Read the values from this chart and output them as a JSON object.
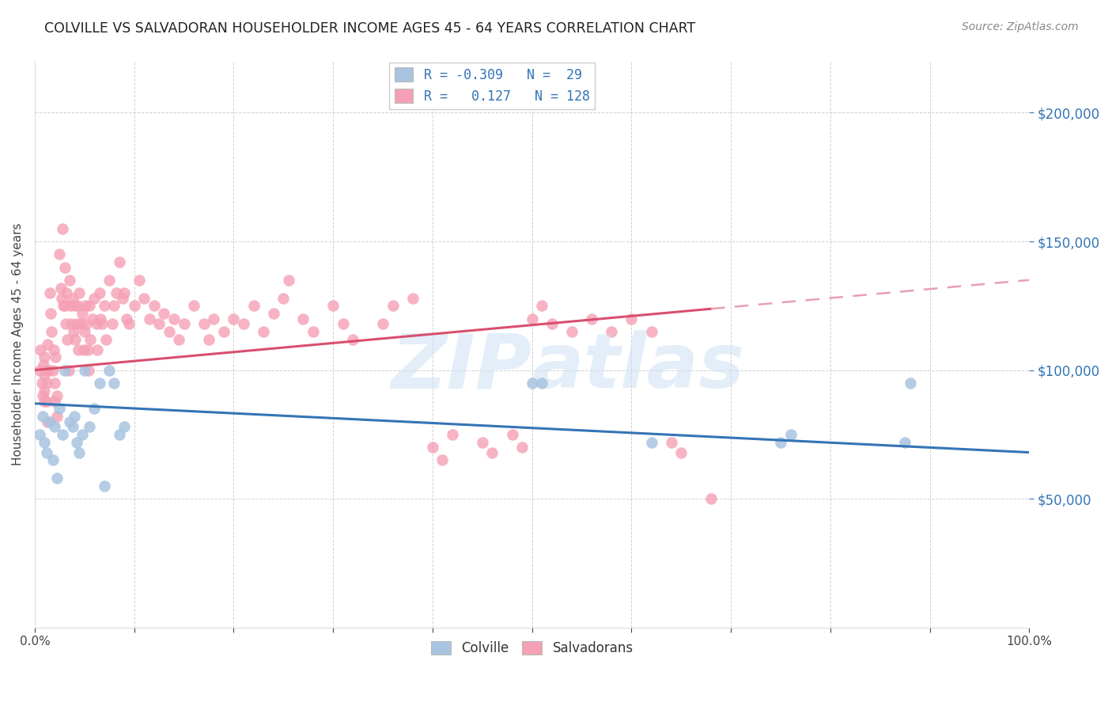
{
  "title": "COLVILLE VS SALVADORAN HOUSEHOLDER INCOME AGES 45 - 64 YEARS CORRELATION CHART",
  "source": "Source: ZipAtlas.com",
  "ylabel": "Householder Income Ages 45 - 64 years",
  "ytick_labels": [
    "$50,000",
    "$100,000",
    "$150,000",
    "$200,000"
  ],
  "ytick_values": [
    50000,
    100000,
    150000,
    200000
  ],
  "ylim": [
    0,
    220000
  ],
  "xlim": [
    0.0,
    1.0
  ],
  "colville_color": "#a8c4e0",
  "salvadoran_color": "#f5a0b5",
  "colville_line_color": "#3474b5",
  "salvadoran_line_color": "#d94f6e",
  "salvadoran_dashed_color": "#e8a0b0",
  "colville_scatter": [
    [
      0.005,
      75000
    ],
    [
      0.008,
      82000
    ],
    [
      0.01,
      72000
    ],
    [
      0.012,
      68000
    ],
    [
      0.015,
      80000
    ],
    [
      0.018,
      65000
    ],
    [
      0.02,
      78000
    ],
    [
      0.022,
      58000
    ],
    [
      0.025,
      85000
    ],
    [
      0.028,
      75000
    ],
    [
      0.03,
      100000
    ],
    [
      0.035,
      80000
    ],
    [
      0.038,
      78000
    ],
    [
      0.04,
      82000
    ],
    [
      0.042,
      72000
    ],
    [
      0.045,
      68000
    ],
    [
      0.048,
      75000
    ],
    [
      0.05,
      100000
    ],
    [
      0.055,
      78000
    ],
    [
      0.06,
      85000
    ],
    [
      0.065,
      95000
    ],
    [
      0.07,
      55000
    ],
    [
      0.075,
      100000
    ],
    [
      0.08,
      95000
    ],
    [
      0.085,
      75000
    ],
    [
      0.09,
      78000
    ],
    [
      0.5,
      95000
    ],
    [
      0.51,
      95000
    ],
    [
      0.62,
      72000
    ],
    [
      0.75,
      72000
    ],
    [
      0.76,
      75000
    ],
    [
      0.875,
      72000
    ],
    [
      0.88,
      95000
    ]
  ],
  "salvadoran_scatter": [
    [
      0.005,
      100000
    ],
    [
      0.006,
      108000
    ],
    [
      0.007,
      95000
    ],
    [
      0.008,
      90000
    ],
    [
      0.009,
      102000
    ],
    [
      0.01,
      88000
    ],
    [
      0.01,
      98000
    ],
    [
      0.01,
      105000
    ],
    [
      0.01,
      92000
    ],
    [
      0.011,
      100000
    ],
    [
      0.012,
      95000
    ],
    [
      0.012,
      88000
    ],
    [
      0.013,
      110000
    ],
    [
      0.013,
      80000
    ],
    [
      0.014,
      100000
    ],
    [
      0.015,
      130000
    ],
    [
      0.016,
      122000
    ],
    [
      0.017,
      115000
    ],
    [
      0.018,
      100000
    ],
    [
      0.019,
      108000
    ],
    [
      0.02,
      95000
    ],
    [
      0.02,
      88000
    ],
    [
      0.021,
      105000
    ],
    [
      0.022,
      90000
    ],
    [
      0.022,
      82000
    ],
    [
      0.025,
      145000
    ],
    [
      0.026,
      132000
    ],
    [
      0.027,
      128000
    ],
    [
      0.028,
      155000
    ],
    [
      0.029,
      125000
    ],
    [
      0.03,
      140000
    ],
    [
      0.03,
      125000
    ],
    [
      0.031,
      118000
    ],
    [
      0.032,
      130000
    ],
    [
      0.033,
      112000
    ],
    [
      0.034,
      100000
    ],
    [
      0.035,
      135000
    ],
    [
      0.036,
      125000
    ],
    [
      0.037,
      118000
    ],
    [
      0.038,
      128000
    ],
    [
      0.039,
      115000
    ],
    [
      0.04,
      125000
    ],
    [
      0.041,
      112000
    ],
    [
      0.042,
      118000
    ],
    [
      0.043,
      125000
    ],
    [
      0.044,
      108000
    ],
    [
      0.045,
      130000
    ],
    [
      0.046,
      118000
    ],
    [
      0.048,
      122000
    ],
    [
      0.049,
      108000
    ],
    [
      0.05,
      115000
    ],
    [
      0.051,
      125000
    ],
    [
      0.052,
      118000
    ],
    [
      0.053,
      108000
    ],
    [
      0.054,
      100000
    ],
    [
      0.055,
      125000
    ],
    [
      0.056,
      112000
    ],
    [
      0.058,
      120000
    ],
    [
      0.06,
      128000
    ],
    [
      0.062,
      118000
    ],
    [
      0.063,
      108000
    ],
    [
      0.065,
      130000
    ],
    [
      0.066,
      120000
    ],
    [
      0.068,
      118000
    ],
    [
      0.07,
      125000
    ],
    [
      0.072,
      112000
    ],
    [
      0.075,
      135000
    ],
    [
      0.078,
      118000
    ],
    [
      0.08,
      125000
    ],
    [
      0.082,
      130000
    ],
    [
      0.085,
      142000
    ],
    [
      0.088,
      128000
    ],
    [
      0.09,
      130000
    ],
    [
      0.092,
      120000
    ],
    [
      0.095,
      118000
    ],
    [
      0.1,
      125000
    ],
    [
      0.105,
      135000
    ],
    [
      0.11,
      128000
    ],
    [
      0.115,
      120000
    ],
    [
      0.12,
      125000
    ],
    [
      0.125,
      118000
    ],
    [
      0.13,
      122000
    ],
    [
      0.135,
      115000
    ],
    [
      0.14,
      120000
    ],
    [
      0.145,
      112000
    ],
    [
      0.15,
      118000
    ],
    [
      0.16,
      125000
    ],
    [
      0.17,
      118000
    ],
    [
      0.175,
      112000
    ],
    [
      0.18,
      120000
    ],
    [
      0.19,
      115000
    ],
    [
      0.2,
      120000
    ],
    [
      0.21,
      118000
    ],
    [
      0.22,
      125000
    ],
    [
      0.23,
      115000
    ],
    [
      0.24,
      122000
    ],
    [
      0.25,
      128000
    ],
    [
      0.255,
      135000
    ],
    [
      0.27,
      120000
    ],
    [
      0.28,
      115000
    ],
    [
      0.3,
      125000
    ],
    [
      0.31,
      118000
    ],
    [
      0.32,
      112000
    ],
    [
      0.35,
      118000
    ],
    [
      0.36,
      125000
    ],
    [
      0.38,
      128000
    ],
    [
      0.4,
      70000
    ],
    [
      0.41,
      65000
    ],
    [
      0.42,
      75000
    ],
    [
      0.45,
      72000
    ],
    [
      0.46,
      68000
    ],
    [
      0.48,
      75000
    ],
    [
      0.49,
      70000
    ],
    [
      0.5,
      120000
    ],
    [
      0.51,
      125000
    ],
    [
      0.52,
      118000
    ],
    [
      0.54,
      115000
    ],
    [
      0.56,
      120000
    ],
    [
      0.58,
      115000
    ],
    [
      0.6,
      120000
    ],
    [
      0.62,
      115000
    ],
    [
      0.64,
      72000
    ],
    [
      0.65,
      68000
    ],
    [
      0.68,
      50000
    ]
  ]
}
